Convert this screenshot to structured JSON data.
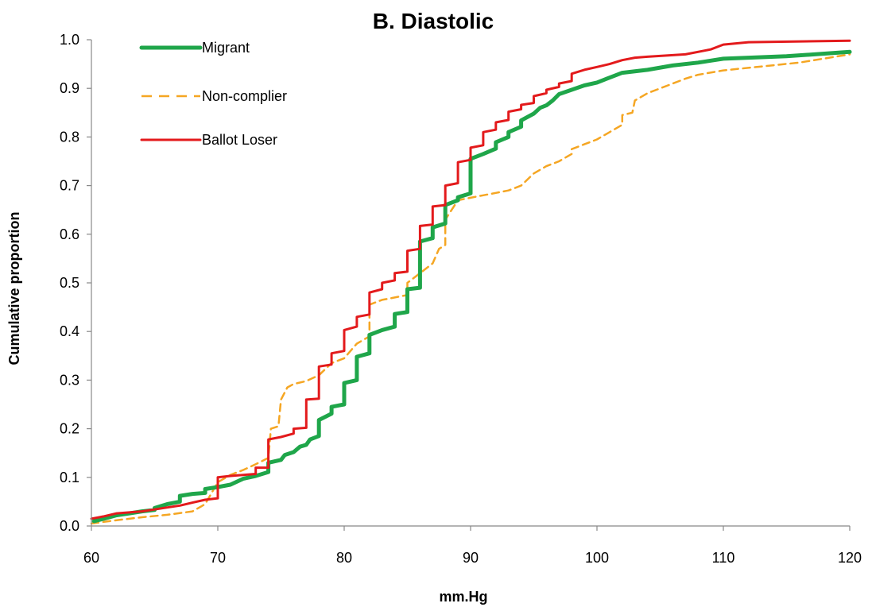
{
  "chart_data": {
    "type": "line",
    "title": "B. Diastolic",
    "xlabel": "mm.Hg",
    "ylabel": "Cumulative proportion",
    "xlim": [
      60,
      120
    ],
    "ylim": [
      0,
      1
    ],
    "x_ticks": [
      "60",
      "70",
      "80",
      "90",
      "100",
      "110",
      "120"
    ],
    "y_ticks": [
      "0.0",
      "0.1",
      "0.2",
      "0.3",
      "0.4",
      "0.5",
      "0.6",
      "0.7",
      "0.8",
      "0.9",
      "1.0"
    ],
    "grid": false,
    "legend_position": "top-left",
    "series": [
      {
        "name": "Migrant",
        "color": "#1fa64a",
        "style": "solid-thick",
        "points": [
          [
            60.2,
            0.01
          ],
          [
            61,
            0.015
          ],
          [
            62,
            0.022
          ],
          [
            63,
            0.026
          ],
          [
            64,
            0.03
          ],
          [
            65,
            0.033
          ],
          [
            65,
            0.037
          ],
          [
            66,
            0.045
          ],
          [
            67,
            0.05
          ],
          [
            67,
            0.062
          ],
          [
            68,
            0.066
          ],
          [
            69,
            0.068
          ],
          [
            69,
            0.076
          ],
          [
            70,
            0.08
          ],
          [
            71,
            0.085
          ],
          [
            72,
            0.097
          ],
          [
            73,
            0.103
          ],
          [
            74,
            0.111
          ],
          [
            74,
            0.13
          ],
          [
            75,
            0.136
          ],
          [
            75.3,
            0.146
          ],
          [
            76,
            0.152
          ],
          [
            76.5,
            0.163
          ],
          [
            77,
            0.167
          ],
          [
            77.3,
            0.178
          ],
          [
            78,
            0.185
          ],
          [
            78,
            0.218
          ],
          [
            79,
            0.231
          ],
          [
            79,
            0.245
          ],
          [
            79.6,
            0.248
          ],
          [
            80,
            0.25
          ],
          [
            80,
            0.294
          ],
          [
            81,
            0.3
          ],
          [
            81,
            0.348
          ],
          [
            82,
            0.355
          ],
          [
            82,
            0.393
          ],
          [
            83,
            0.403
          ],
          [
            84,
            0.41
          ],
          [
            84,
            0.436
          ],
          [
            85,
            0.44
          ],
          [
            85,
            0.487
          ],
          [
            86,
            0.49
          ],
          [
            86,
            0.585
          ],
          [
            87,
            0.592
          ],
          [
            87,
            0.614
          ],
          [
            88,
            0.622
          ],
          [
            88,
            0.66
          ],
          [
            89,
            0.67
          ],
          [
            89,
            0.676
          ],
          [
            90,
            0.684
          ],
          [
            90,
            0.755
          ],
          [
            91,
            0.765
          ],
          [
            92,
            0.776
          ],
          [
            92,
            0.789
          ],
          [
            93,
            0.8
          ],
          [
            93,
            0.81
          ],
          [
            94,
            0.821
          ],
          [
            94,
            0.834
          ],
          [
            95,
            0.848
          ],
          [
            95.5,
            0.86
          ],
          [
            96,
            0.865
          ],
          [
            96.5,
            0.875
          ],
          [
            97,
            0.888
          ],
          [
            98,
            0.897
          ],
          [
            99,
            0.906
          ],
          [
            100,
            0.912
          ],
          [
            101,
            0.922
          ],
          [
            102,
            0.932
          ],
          [
            104,
            0.938
          ],
          [
            106,
            0.947
          ],
          [
            108,
            0.953
          ],
          [
            110,
            0.961
          ],
          [
            115,
            0.966
          ],
          [
            120,
            0.975
          ]
        ]
      },
      {
        "name": "Non-complier",
        "color": "#f5a623",
        "style": "dashed",
        "points": [
          [
            60,
            0.005
          ],
          [
            62,
            0.012
          ],
          [
            64,
            0.018
          ],
          [
            66,
            0.023
          ],
          [
            68,
            0.03
          ],
          [
            69,
            0.045
          ],
          [
            70,
            0.09
          ],
          [
            71,
            0.105
          ],
          [
            72,
            0.115
          ],
          [
            73,
            0.127
          ],
          [
            74,
            0.14
          ],
          [
            74.2,
            0.2
          ],
          [
            74.8,
            0.205
          ],
          [
            75,
            0.26
          ],
          [
            75.5,
            0.285
          ],
          [
            76,
            0.292
          ],
          [
            77,
            0.298
          ],
          [
            78,
            0.31
          ],
          [
            79,
            0.335
          ],
          [
            80,
            0.345
          ],
          [
            81,
            0.375
          ],
          [
            82,
            0.39
          ],
          [
            82,
            0.455
          ],
          [
            83,
            0.465
          ],
          [
            84,
            0.47
          ],
          [
            85,
            0.475
          ],
          [
            85,
            0.5
          ],
          [
            86,
            0.52
          ],
          [
            87,
            0.54
          ],
          [
            87.5,
            0.57
          ],
          [
            88,
            0.578
          ],
          [
            88,
            0.63
          ],
          [
            89,
            0.67
          ],
          [
            90,
            0.675
          ],
          [
            91,
            0.68
          ],
          [
            92,
            0.685
          ],
          [
            93,
            0.69
          ],
          [
            94,
            0.7
          ],
          [
            95,
            0.725
          ],
          [
            96,
            0.74
          ],
          [
            97,
            0.75
          ],
          [
            98,
            0.765
          ],
          [
            98,
            0.775
          ],
          [
            99,
            0.785
          ],
          [
            100,
            0.795
          ],
          [
            101,
            0.81
          ],
          [
            102,
            0.825
          ],
          [
            102,
            0.845
          ],
          [
            102.8,
            0.85
          ],
          [
            103,
            0.875
          ],
          [
            104,
            0.89
          ],
          [
            105,
            0.9
          ],
          [
            106,
            0.91
          ],
          [
            107,
            0.92
          ],
          [
            108,
            0.928
          ],
          [
            110,
            0.937
          ],
          [
            113,
            0.945
          ],
          [
            116,
            0.953
          ],
          [
            120,
            0.97
          ]
        ]
      },
      {
        "name": "Ballot Loser",
        "color": "#e31a1c",
        "style": "solid",
        "points": [
          [
            60,
            0.015
          ],
          [
            61,
            0.02
          ],
          [
            62,
            0.026
          ],
          [
            63,
            0.028
          ],
          [
            64,
            0.03
          ],
          [
            65,
            0.034
          ],
          [
            66,
            0.038
          ],
          [
            67,
            0.042
          ],
          [
            68,
            0.048
          ],
          [
            69,
            0.054
          ],
          [
            70,
            0.057
          ],
          [
            70,
            0.1
          ],
          [
            71,
            0.103
          ],
          [
            72,
            0.105
          ],
          [
            73,
            0.107
          ],
          [
            73,
            0.12
          ],
          [
            74,
            0.12
          ],
          [
            74,
            0.178
          ],
          [
            75,
            0.183
          ],
          [
            76,
            0.19
          ],
          [
            76,
            0.2
          ],
          [
            77,
            0.202
          ],
          [
            77,
            0.26
          ],
          [
            78,
            0.262
          ],
          [
            78,
            0.328
          ],
          [
            79,
            0.332
          ],
          [
            79,
            0.355
          ],
          [
            80,
            0.36
          ],
          [
            80,
            0.403
          ],
          [
            81,
            0.41
          ],
          [
            81,
            0.43
          ],
          [
            82,
            0.435
          ],
          [
            82,
            0.48
          ],
          [
            83,
            0.487
          ],
          [
            83,
            0.5
          ],
          [
            84,
            0.505
          ],
          [
            84,
            0.52
          ],
          [
            85,
            0.523
          ],
          [
            85,
            0.566
          ],
          [
            86,
            0.57
          ],
          [
            86,
            0.617
          ],
          [
            87,
            0.62
          ],
          [
            87,
            0.657
          ],
          [
            88,
            0.66
          ],
          [
            88,
            0.7
          ],
          [
            89,
            0.705
          ],
          [
            89,
            0.748
          ],
          [
            90,
            0.753
          ],
          [
            90,
            0.778
          ],
          [
            91,
            0.783
          ],
          [
            91,
            0.81
          ],
          [
            92,
            0.815
          ],
          [
            92,
            0.83
          ],
          [
            93,
            0.835
          ],
          [
            93,
            0.852
          ],
          [
            94,
            0.857
          ],
          [
            94,
            0.866
          ],
          [
            95,
            0.87
          ],
          [
            95,
            0.884
          ],
          [
            96,
            0.89
          ],
          [
            96,
            0.897
          ],
          [
            97,
            0.903
          ],
          [
            97,
            0.91
          ],
          [
            98,
            0.915
          ],
          [
            98,
            0.93
          ],
          [
            99,
            0.938
          ],
          [
            100,
            0.944
          ],
          [
            101,
            0.95
          ],
          [
            102,
            0.958
          ],
          [
            103,
            0.963
          ],
          [
            104,
            0.965
          ],
          [
            107,
            0.97
          ],
          [
            109,
            0.98
          ],
          [
            110,
            0.99
          ],
          [
            112,
            0.995
          ],
          [
            120,
            0.998
          ]
        ]
      }
    ]
  }
}
